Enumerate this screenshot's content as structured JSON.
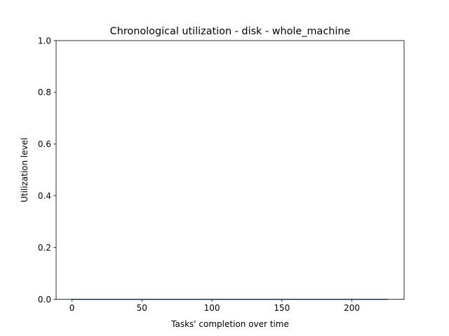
{
  "chart_data": {
    "type": "area",
    "title": "Chronological utilization - disk - whole_machine",
    "xlabel": "Tasks' completion over time",
    "ylabel": "Utilization level",
    "xlim": [
      -11.3,
      237.3
    ],
    "ylim": [
      0.0,
      1.0
    ],
    "xticks": [
      0,
      50,
      100,
      150,
      200
    ],
    "xtick_labels": [
      "0",
      "50",
      "100",
      "150",
      "200"
    ],
    "yticks": [
      0.0,
      0.2,
      0.4,
      0.6,
      0.8,
      1.0
    ],
    "ytick_labels": [
      "0.0",
      "0.2",
      "0.4",
      "0.6",
      "0.8",
      "1.0"
    ],
    "grid": false,
    "legend": "none",
    "series": [
      {
        "color": "#1f77b4",
        "x": [
          0,
          226
        ],
        "y": [
          0.0,
          0.0
        ]
      }
    ]
  }
}
